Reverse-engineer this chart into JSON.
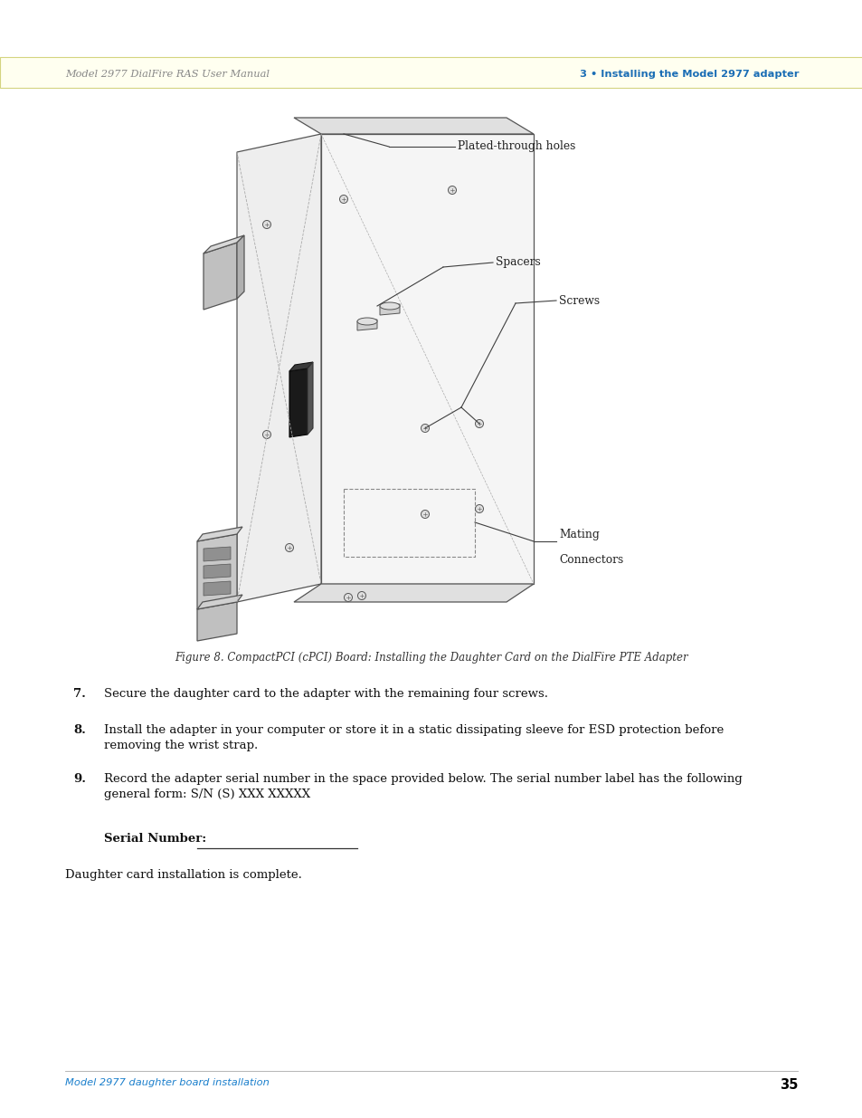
{
  "page_width": 9.54,
  "page_height": 12.35,
  "dpi": 100,
  "background_color": "#ffffff",
  "header_bg": "#fffff0",
  "header_border_color": "#d4d480",
  "header_left_text": "Model 2977 DialFire RAS User Manual",
  "header_right_text": "3 • Installing the Model 2977 adapter",
  "header_text_color_left": "#888888",
  "header_text_color_right": "#1a6db5",
  "footer_left_text": "Model 2977 daughter board installation",
  "footer_right_text": "35",
  "footer_text_color": "#1a7fcc",
  "footer_page_color": "#000000",
  "figure_caption": "Figure 8. CompactPCI (cPCI) Board: Installing the Daughter Card on the DialFire PTE Adapter",
  "step7_num": "7.",
  "step7_text": "Secure the daughter card to the adapter with the remaining four screws.",
  "step8_num": "8.",
  "step8_text": "Install the adapter in your computer or store it in a static dissipating sleeve for ESD protection before removing the wrist strap.",
  "step9_num": "9.",
  "step9_text": "Record the adapter serial number in the space provided below. The serial number label has the following general form: S/N (S) XXX XXXXX",
  "serial_label": "Serial Number:",
  "closing_text": "Daughter card installation is complete.",
  "label_plated": "Plated-through holes",
  "label_spacers": "Spacers",
  "label_screws": "Screws",
  "label_mating1": "Mating",
  "label_mating2": "Connectors",
  "diagram_color": "#555555",
  "dark_color": "#222222"
}
